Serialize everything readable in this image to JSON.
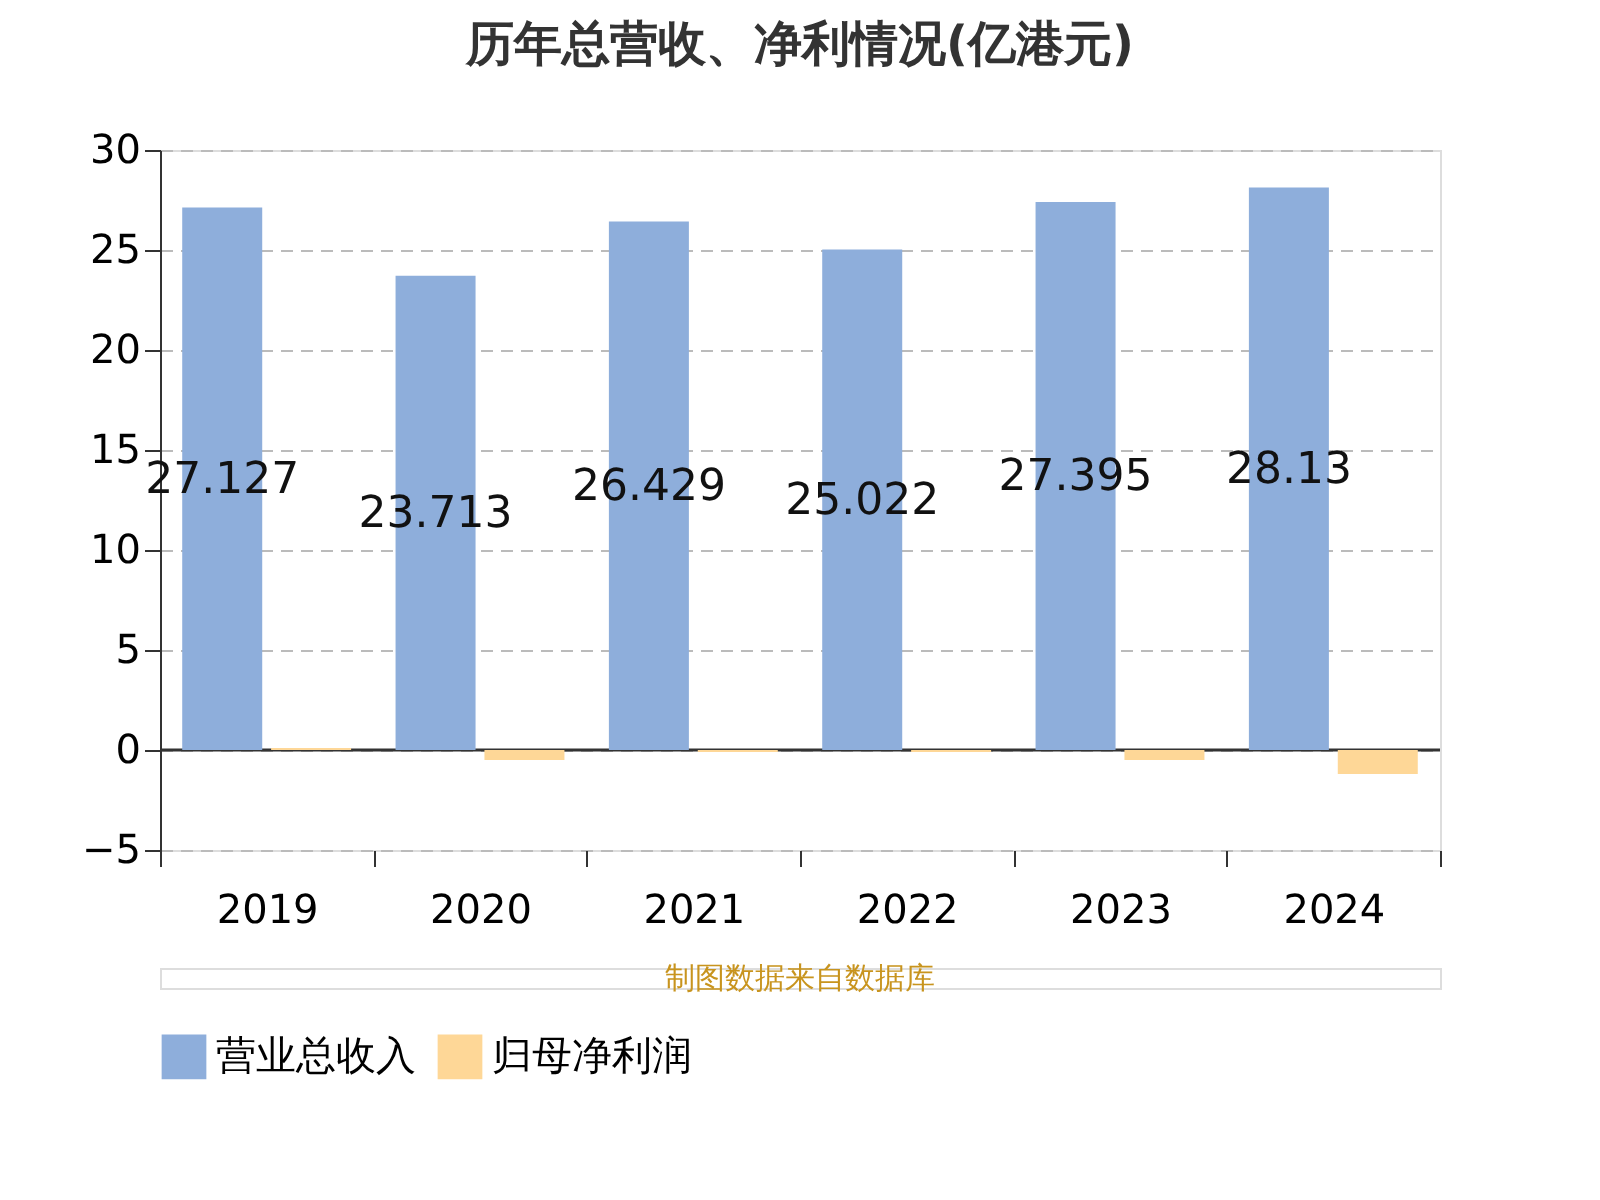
{
  "chart_data": {
    "type": "bar",
    "title": "历年总营收、净利情况(亿港元)",
    "categories": [
      "2019",
      "2020",
      "2021",
      "2022",
      "2023",
      "2024"
    ],
    "series": [
      {
        "name": "营业总收入",
        "color": "#8eaedb",
        "values": [
          27.127,
          23.713,
          26.429,
          25.022,
          27.395,
          28.13
        ],
        "value_labels": [
          "27.127",
          "23.713",
          "26.429",
          "25.022",
          "27.395",
          "28.13"
        ]
      },
      {
        "name": "归母净利润",
        "color": "#fed797",
        "values": [
          0.1,
          -0.5,
          -0.1,
          -0.1,
          -0.5,
          -1.2
        ]
      }
    ],
    "ylim": [
      -5,
      30
    ],
    "yticks": [
      -5,
      0,
      5,
      10,
      15,
      20,
      25,
      30
    ],
    "grid": "y",
    "legend": "bottom",
    "annotations": [
      "制图数据来自数据库"
    ]
  }
}
